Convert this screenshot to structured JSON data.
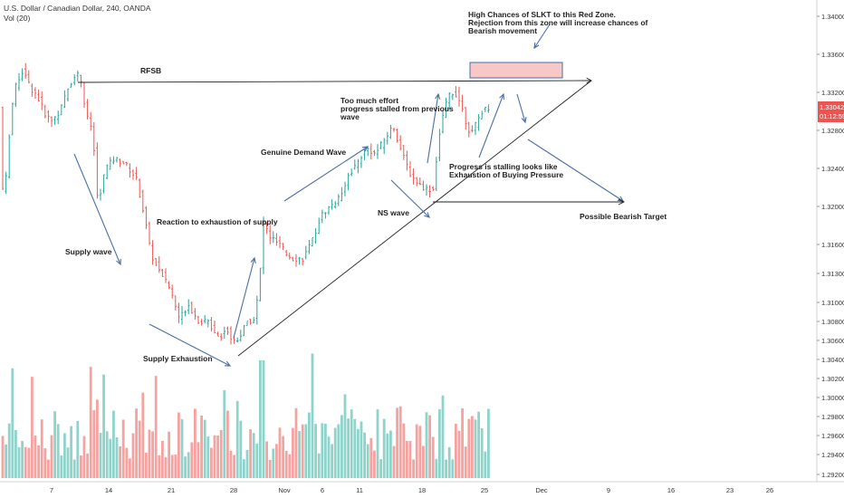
{
  "header": {
    "symbol_line": "U.S. Dollar / Canadian Dollar, 240, OANDA",
    "volume_line": "Vol (20)"
  },
  "colors": {
    "up": "#26a69a",
    "down": "#ef5350",
    "vol_up": "#8fd3cb",
    "vol_down": "#f4a3a1",
    "annotation": "#4a6fa5",
    "red_zone_fill": "#f8c7c7",
    "red_zone_border": "#4a6fa5",
    "badge": "#ef5350"
  },
  "price_badge": {
    "price": "1.33042",
    "countdown": "01:12:59"
  },
  "chart_data": {
    "type": "candlestick",
    "title": "U.S. Dollar / Canadian Dollar, 240, OANDA",
    "y_axis": {
      "range": [
        1.2916,
        1.3443
      ],
      "ticks": [
        "1.34000",
        "1.33600",
        "1.33200",
        "1.32800",
        "1.32400",
        "1.32000",
        "1.31600",
        "1.31300",
        "1.31000",
        "1.30800",
        "1.30600",
        "1.30400",
        "1.30200",
        "1.30000",
        "1.29800",
        "1.29600",
        "1.29400",
        "1.29200"
      ]
    },
    "x_axis": {
      "ticks": [
        "7",
        "14",
        "21",
        "28",
        "Nov",
        "6",
        "11",
        "18",
        "25",
        "Dec",
        "9",
        "16",
        "23",
        "26"
      ]
    },
    "key_points": [
      {
        "label": "Oct 3 start",
        "price": 1.322
      },
      {
        "label": "Oct 9 high",
        "price": 1.3355
      },
      {
        "label": "Oct 16 low after supply wave",
        "price": 1.319
      },
      {
        "label": "Oct 28 low",
        "price": 1.3048
      },
      {
        "label": "Nov 15 high",
        "price": 1.3288
      },
      {
        "label": "Nov 19 low",
        "price": 1.3215
      },
      {
        "label": "Nov 22 high",
        "price": 1.333
      },
      {
        "label": "Last",
        "price": 1.33042
      }
    ],
    "volume": {
      "label": "Vol (20)"
    }
  },
  "annotations": {
    "rfsb": "RFSB",
    "supply_wave": "Supply wave",
    "reaction": "Reaction to exhaustion of supply",
    "supply_exhaustion": "Supply Exhaustion",
    "genuine_demand": "Genuine Demand Wave",
    "too_much_effort_1": "Too much effort",
    "too_much_effort_2": "progress stalled from previous",
    "too_much_effort_3": "wave",
    "ns_wave": "NS wave",
    "progress_1": "Progress is stalling looks like",
    "progress_2": "Exhaustion of Buying Pressure",
    "high_chances_1": "High Chances of SLKT to this Red Zone.",
    "high_chances_2": "Rejection from this zone will increase chances of",
    "high_chances_3": "Bearish movement",
    "bearish_target": "Possible Bearish Target"
  }
}
